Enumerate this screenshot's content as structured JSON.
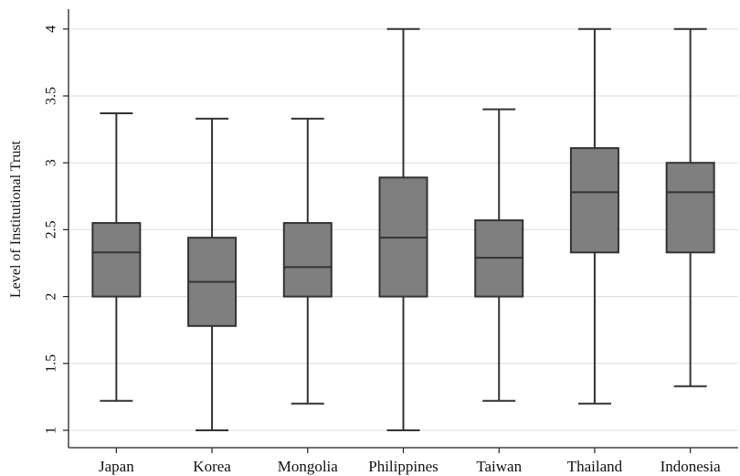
{
  "chart_data": {
    "type": "box",
    "title": "",
    "xlabel": "",
    "ylabel": "Level of Institutional Trust",
    "ylim": [
      0.9,
      4.05
    ],
    "yticks": [
      1,
      1.5,
      2,
      2.5,
      3,
      3.5,
      4
    ],
    "ytick_labels": [
      "1",
      "1.5",
      "2",
      "2.5",
      "3",
      "3.5",
      "4"
    ],
    "grid": true,
    "legend": "none",
    "box_color": "#7f7f7f",
    "categories": [
      "Japan",
      "Korea",
      "Mongolia",
      "Philippines",
      "Taiwan",
      "Thailand",
      "Indonesia"
    ],
    "boxes": [
      {
        "min": 1.22,
        "q1": 2.0,
        "median": 2.33,
        "q3": 2.55,
        "max": 3.37
      },
      {
        "min": 1.0,
        "q1": 1.78,
        "median": 2.11,
        "q3": 2.44,
        "max": 3.33
      },
      {
        "min": 1.2,
        "q1": 2.0,
        "median": 2.22,
        "q3": 2.55,
        "max": 3.33
      },
      {
        "min": 1.0,
        "q1": 2.0,
        "median": 2.44,
        "q3": 2.89,
        "max": 4.0
      },
      {
        "min": 1.22,
        "q1": 2.0,
        "median": 2.29,
        "q3": 2.57,
        "max": 3.4
      },
      {
        "min": 1.2,
        "q1": 2.33,
        "median": 2.78,
        "q3": 3.11,
        "max": 4.0
      },
      {
        "min": 1.33,
        "q1": 2.33,
        "median": 2.78,
        "q3": 3.0,
        "max": 4.0
      }
    ]
  }
}
